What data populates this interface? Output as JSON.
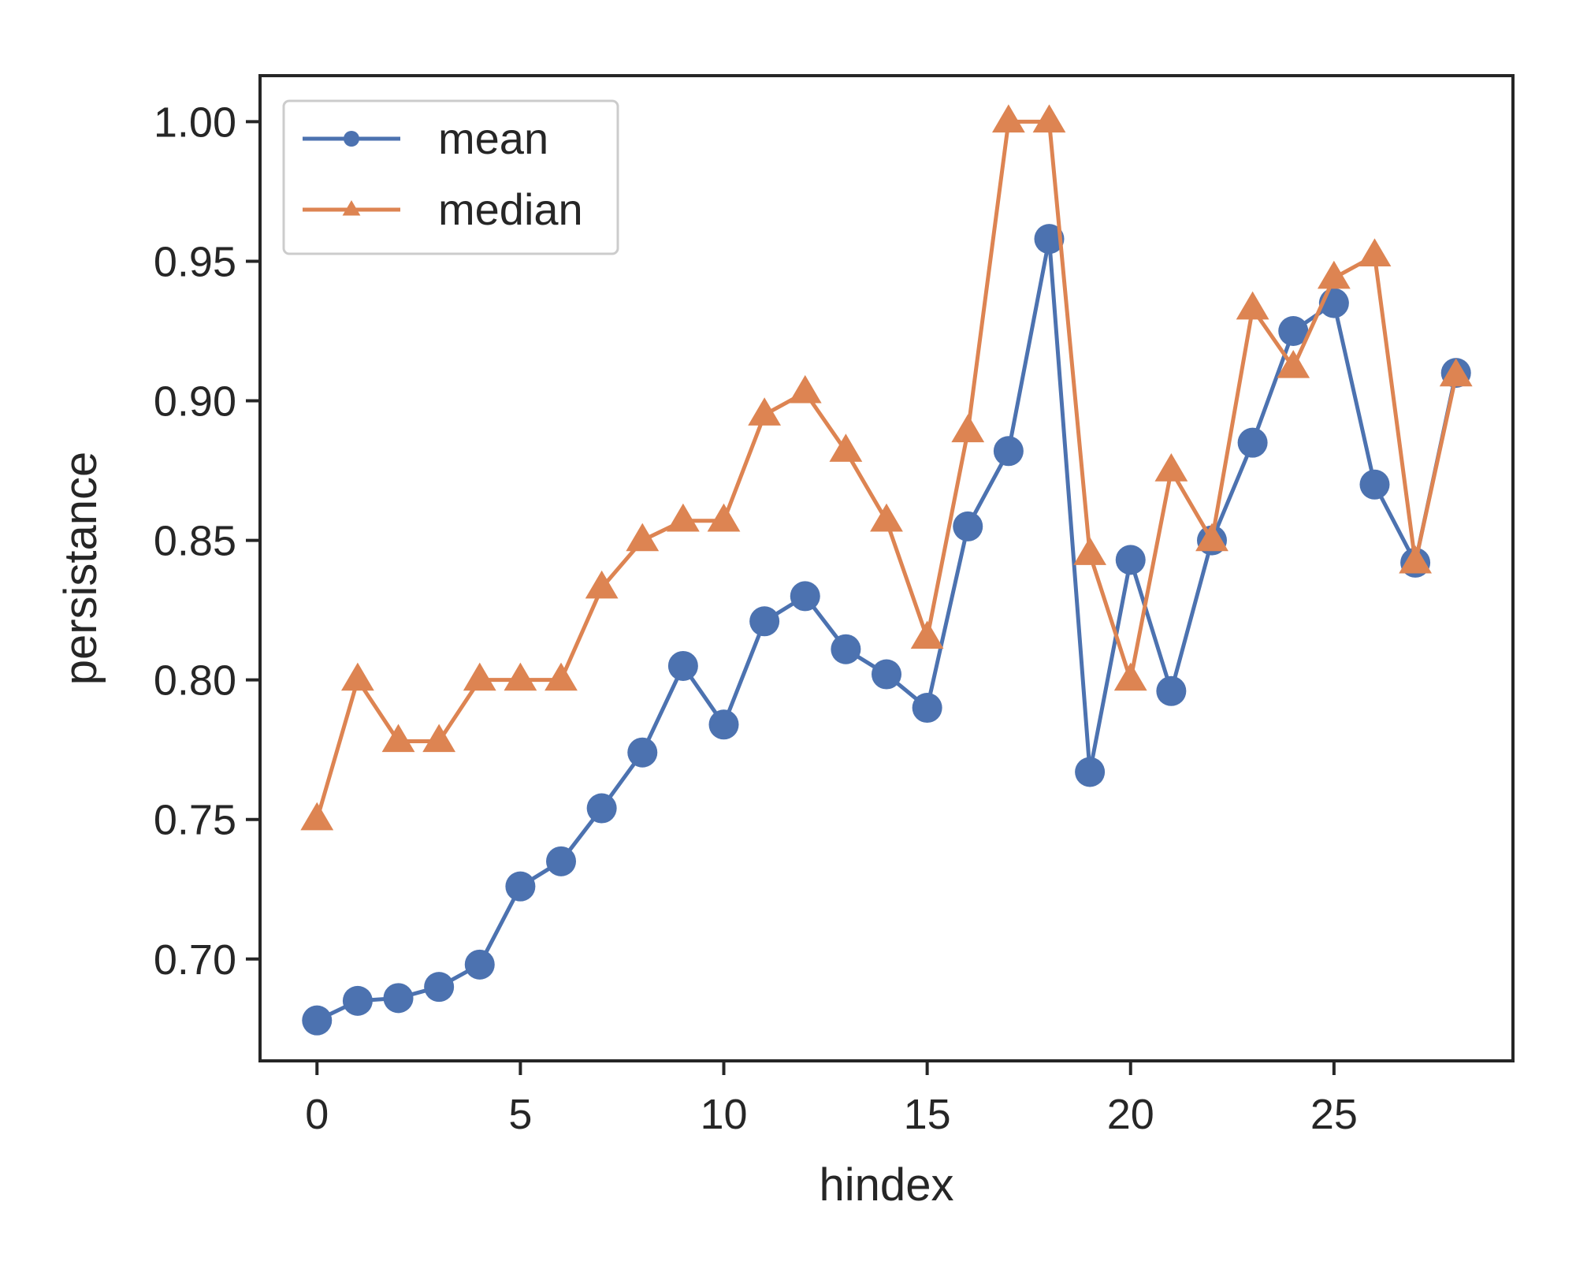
{
  "chart_data": {
    "type": "line",
    "title": "",
    "xlabel": "hindex",
    "ylabel": "persistance",
    "x": [
      0,
      1,
      2,
      3,
      4,
      5,
      6,
      7,
      8,
      9,
      10,
      11,
      12,
      13,
      14,
      15,
      16,
      17,
      18,
      19,
      20,
      21,
      22,
      23,
      24,
      25,
      26,
      27,
      28
    ],
    "series": [
      {
        "name": "mean",
        "marker": "circle",
        "color": "#4c72b0",
        "values": [
          0.678,
          0.685,
          0.686,
          0.69,
          0.698,
          0.726,
          0.735,
          0.754,
          0.774,
          0.805,
          0.784,
          0.821,
          0.83,
          0.811,
          0.802,
          0.79,
          0.855,
          0.882,
          0.958,
          0.767,
          0.843,
          0.796,
          0.85,
          0.885,
          0.925,
          0.935,
          0.87,
          0.842,
          0.91
        ]
      },
      {
        "name": "median",
        "marker": "triangle",
        "color": "#dd8452",
        "values": [
          0.75,
          0.8,
          0.778,
          0.778,
          0.8,
          0.8,
          0.8,
          0.833,
          0.85,
          0.857,
          0.857,
          0.895,
          0.903,
          0.882,
          0.857,
          0.815,
          0.889,
          1.0,
          1.0,
          0.845,
          0.8,
          0.875,
          0.85,
          0.933,
          0.912,
          0.944,
          0.952,
          0.842,
          0.909
        ]
      }
    ],
    "xlim": [
      -1.4,
      29.4
    ],
    "ylim": [
      0.6635,
      1.0165
    ],
    "xticks": [
      0,
      5,
      10,
      15,
      20,
      25
    ],
    "xtick_labels": [
      "0",
      "5",
      "10",
      "15",
      "20",
      "25"
    ],
    "yticks": [
      0.7,
      0.75,
      0.8,
      0.85,
      0.9,
      0.95,
      1.0
    ],
    "ytick_labels": [
      "0.70",
      "0.75",
      "0.80",
      "0.85",
      "0.90",
      "0.95",
      "1.00"
    ],
    "grid": false,
    "legend_position": "top-left"
  }
}
